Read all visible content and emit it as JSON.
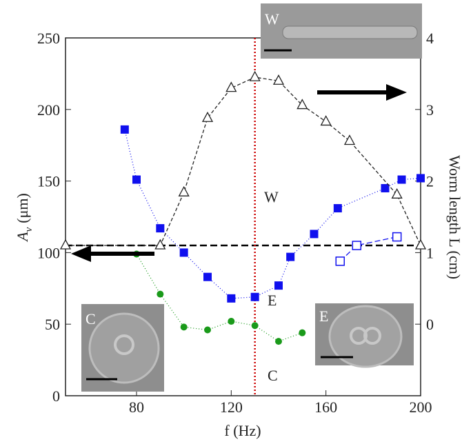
{
  "chart_data": {
    "type": "line",
    "xlabel": "f (Hz)",
    "ylabel": "A",
    "ylabel_sub": "v",
    "ylabel_unit": "(μm)",
    "y2label": "Worm length L (cm)",
    "xlim": [
      50,
      200
    ],
    "xticks": [
      80,
      120,
      160,
      200
    ],
    "ylim": [
      0,
      250
    ],
    "yticks": [
      0,
      50,
      100,
      150,
      200,
      250
    ],
    "y2lim": [
      -1,
      4
    ],
    "y2ticks": [
      0,
      1,
      2,
      3,
      4
    ],
    "vline": 130,
    "vline_color": "#cc0000",
    "hline": 105,
    "series": [
      {
        "x": [
          75,
          80,
          90,
          100,
          110,
          120,
          130,
          140,
          145,
          155,
          165,
          185,
          192,
          200
        ],
        "values": [
          186,
          151,
          117,
          100,
          83,
          68,
          69,
          77,
          97,
          113,
          131,
          145,
          151,
          152
        ],
        "color": "#1010ee",
        "marker": "square",
        "dash": "1,3",
        "axis": "y"
      },
      {
        "x": [
          166,
          173,
          190
        ],
        "values": [
          94,
          105,
          111
        ],
        "color": "#1010ee",
        "marker": "open-square",
        "dash": "8,4",
        "axis": "y"
      },
      {
        "x": [
          80,
          90,
          100,
          110,
          120,
          130,
          140,
          150
        ],
        "values": [
          99,
          71,
          48,
          46,
          52,
          49,
          38,
          44
        ],
        "color": "#1a9a1a",
        "marker": "circle",
        "dash": "1,3",
        "axis": "y"
      },
      {
        "x": [
          50,
          90,
          100,
          110,
          120,
          130,
          140,
          150,
          160,
          170,
          190,
          200
        ],
        "values": [
          1.1,
          1.1,
          1.84,
          2.88,
          3.3,
          3.45,
          3.4,
          3.06,
          2.83,
          2.56,
          1.81,
          1.1
        ],
        "color": "#222222",
        "marker": "open-triangle",
        "dash": "5,3",
        "axis": "y2"
      }
    ],
    "annotations": [
      "W",
      "E",
      "C"
    ],
    "inset_labels": [
      "W",
      "C",
      "E"
    ]
  }
}
